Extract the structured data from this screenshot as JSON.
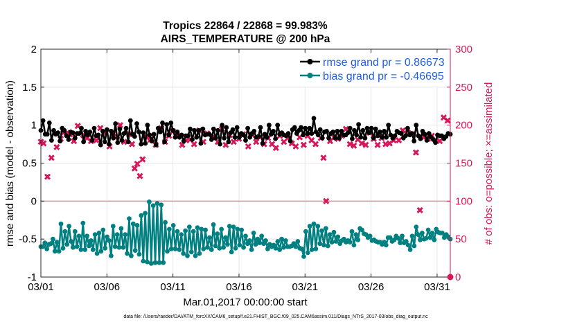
{
  "chart_data": {
    "type": "line",
    "title": "Tropics 22864 / 22868 = 99.983%",
    "subtitle": "AIRS_TEMPERATURE @ 200 hPa",
    "xlabel": "Mar.01,2017 00:00:00 start",
    "ylabel": "rmse and bias (model - observation)",
    "y2label": "# of obs: o=possible; ×=assimilated",
    "footnote": "data file: /Users/raeder/DAI/ATM_forcXX/CAM6_setup/f.e21.FHIST_BGC.f09_025.CAM6assim.011/Diags_NTrS_2017-03/obs_diag_output.nc",
    "x_range": [
      1,
      32
    ],
    "x_ticks": [
      1,
      6,
      11,
      16,
      21,
      26,
      31
    ],
    "x_tick_labels": [
      "03/01",
      "03/06",
      "03/11",
      "03/16",
      "03/21",
      "03/26",
      "03/31"
    ],
    "ylim": [
      -1,
      2
    ],
    "y_ticks": [
      -1,
      -0.5,
      0,
      0.5,
      1,
      1.5,
      2
    ],
    "y_tick_labels": [
      "-1",
      "-0.5",
      "0",
      "0.5",
      "1",
      "1.5",
      "2"
    ],
    "y2lim": [
      0,
      300
    ],
    "y2_ticks": [
      0,
      50,
      100,
      150,
      200,
      250,
      300
    ],
    "y2_tick_labels": [
      "0",
      "50",
      "100",
      "150",
      "200",
      "250",
      "300"
    ],
    "legend_location": "top-right",
    "legend": [
      {
        "label": "rmse grand pr = 0.86673",
        "color": "#000000"
      },
      {
        "label": "bias grand pr = -0.46695",
        "color": "#008080"
      }
    ],
    "colors": {
      "rmse": "#000000",
      "bias": "#008080",
      "obs": "#d6185a",
      "zero_line": "#c49a9a",
      "grid": "#e6e6e6"
    },
    "series": [
      {
        "name": "rmse",
        "values": [
          0.93,
          1.06,
          0.88,
          0.88,
          1.03,
          0.8,
          0.93,
          0.88,
          0.9,
          0.79,
          0.96,
          0.93,
          0.86,
          0.81,
          0.91,
          0.9,
          0.83,
          0.89,
          0.89,
          0.96,
          0.78,
          0.92,
          0.87,
          0.91,
          0.8,
          0.96,
          0.86,
          0.87,
          0.74,
          0.92,
          0.78,
          0.94,
          0.75,
          0.92,
          0.83,
          1.02,
          0.77,
          0.95,
          0.8,
          0.89,
          0.96,
          0.78,
          1.06,
          0.88,
          0.85,
          1.02,
          0.91,
          0.75,
          0.9,
          0.76,
          1.0,
          0.87,
          0.79,
          0.88,
          0.74,
          0.96,
          0.91,
          1.03,
          0.78,
          1.01,
          0.87,
          1.03,
          0.93,
          0.84,
          0.91,
          0.84,
          0.87,
          0.79,
          0.86,
          0.86,
          0.95,
          0.81,
          0.93,
          0.84,
          0.93,
          0.76,
          0.95,
          0.87,
          0.88,
          0.88,
          0.81,
          0.95,
          0.83,
          0.93,
          0.75,
          1.0,
          0.83,
          0.97,
          0.78,
          0.9,
          0.94,
          0.84,
          0.97,
          0.84,
          0.89,
          0.87,
          0.8,
          0.96,
          0.84,
          0.89,
          0.92,
          0.84,
          0.85,
          0.97,
          0.76,
          0.88,
          0.84,
          1.0,
          0.88,
          0.92,
          0.82,
          1.0,
          0.88,
          0.9,
          0.87,
          0.86,
          0.89,
          0.79,
          0.94,
          0.97,
          0.89,
          0.93,
          0.97,
          0.87,
          0.96,
          0.89,
          0.96,
          0.89,
          1.09,
          0.91,
          0.87,
          0.94,
          0.83,
          0.91,
          0.92,
          0.83,
          0.89,
          0.91,
          0.83,
          0.92,
          0.83,
          0.92,
          0.87,
          0.87,
          0.9,
          0.96,
          0.82,
          0.93,
          0.87,
          1.01,
          0.84,
          0.93,
          0.83,
          0.96,
          0.9,
          0.96,
          0.83,
          0.95,
          0.86,
          0.91,
          0.84,
          0.92,
          0.84,
          1.0,
          0.87,
          0.83,
          0.86,
          0.92,
          0.9,
          0.89,
          0.83,
          0.86,
          0.96,
          0.87,
          0.89,
          0.79,
          1.0,
          0.86,
          0.82,
          0.92,
          0.88,
          0.8,
          0.89,
          0.84,
          0.81,
          0.77,
          0.87,
          0.86,
          0.86,
          0.82,
          0.85,
          0.89,
          0.88
        ]
      },
      {
        "name": "bias",
        "values": [
          -0.6,
          -0.6,
          -0.55,
          -0.63,
          -0.57,
          -0.56,
          -0.5,
          -0.66,
          -0.54,
          -0.66,
          -0.3,
          -0.62,
          -0.4,
          -0.57,
          -0.33,
          -0.53,
          -0.61,
          -0.4,
          -0.6,
          -0.46,
          -0.64,
          -0.29,
          -0.64,
          -0.46,
          -0.59,
          -0.52,
          -0.64,
          -0.44,
          -0.69,
          -0.42,
          -0.66,
          -0.38,
          -0.62,
          -0.47,
          -0.52,
          -0.72,
          -0.33,
          -0.6,
          -0.44,
          -0.61,
          -0.36,
          -0.61,
          -0.44,
          -0.69,
          -0.23,
          -0.72,
          -0.3,
          -0.65,
          -0.32,
          -0.7,
          -0.19,
          -0.79,
          -0.16,
          -0.8,
          -0.01,
          -0.82,
          -0.06,
          -0.81,
          -0.03,
          -0.81,
          -0.05,
          -0.81,
          -0.28,
          -0.66,
          -0.37,
          -0.63,
          -0.32,
          -0.63,
          -0.4,
          -0.64,
          -0.44,
          -0.69,
          -0.39,
          -0.72,
          -0.34,
          -0.67,
          -0.4,
          -0.72,
          -0.35,
          -0.69,
          -0.37,
          -0.63,
          -0.38,
          -0.61,
          -0.48,
          -0.64,
          -0.31,
          -0.59,
          -0.43,
          -0.62,
          -0.37,
          -0.61,
          -0.48,
          -0.57,
          -0.33,
          -0.67,
          -0.34,
          -0.62,
          -0.37,
          -0.58,
          -0.38,
          -0.61,
          -0.46,
          -0.56,
          -0.52,
          -0.64,
          -0.42,
          -0.57,
          -0.5,
          -0.55,
          -0.46,
          -0.56,
          -0.52,
          -0.63,
          -0.57,
          -0.6,
          -0.58,
          -0.62,
          -0.53,
          -0.64,
          -0.5,
          -0.61,
          -0.52,
          -0.6,
          -0.6,
          -0.59,
          -0.56,
          -0.6,
          -0.53,
          -0.62,
          -0.63,
          -0.73,
          -0.4,
          -0.68,
          -0.33,
          -0.64,
          -0.3,
          -0.63,
          -0.33,
          -0.56,
          -0.39,
          -0.58,
          -0.36,
          -0.59,
          -0.44,
          -0.54,
          -0.41,
          -0.53,
          -0.47,
          -0.56,
          -0.52,
          -0.5,
          -0.54,
          -0.52,
          -0.54,
          -0.4,
          -0.58,
          -0.44,
          -0.51,
          -0.36,
          -0.38,
          -0.43,
          -0.44,
          -0.48,
          -0.46,
          -0.52,
          -0.51,
          -0.53,
          -0.54,
          -0.54,
          -0.57,
          -0.54,
          -0.58,
          -0.48,
          -0.48,
          -0.53,
          -0.51,
          -0.46,
          -0.49,
          -0.55,
          -0.46,
          -0.55,
          -0.53,
          -0.58,
          -0.64,
          -0.46,
          -0.59,
          -0.34,
          -0.44,
          -0.51,
          -0.42,
          -0.5,
          -0.49,
          -0.38,
          -0.48,
          -0.42,
          -0.51,
          -0.37,
          -0.41,
          -0.42,
          -0.42,
          -0.48,
          -0.44,
          -0.47,
          -0.5
        ]
      }
    ],
    "obs_assimilated": {
      "name": "# of obs assimilated",
      "marker": "x",
      "points": [
        [
          1.0,
          178
        ],
        [
          1.2,
          176
        ],
        [
          1.5,
          132
        ],
        [
          1.8,
          157
        ],
        [
          2.2,
          171
        ],
        [
          2.5,
          182
        ],
        [
          2.7,
          190
        ],
        [
          3.0,
          190
        ],
        [
          3.2,
          188
        ],
        [
          3.5,
          179
        ],
        [
          3.8,
          199
        ],
        [
          4.2,
          187
        ],
        [
          4.5,
          183
        ],
        [
          4.8,
          179
        ],
        [
          5.2,
          180
        ],
        [
          5.5,
          196
        ],
        [
          5.8,
          190
        ],
        [
          6.2,
          172
        ],
        [
          6.5,
          189
        ],
        [
          6.8,
          185
        ],
        [
          7.0,
          200
        ],
        [
          7.3,
          178
        ],
        [
          7.7,
          188
        ],
        [
          7.9,
          175
        ],
        [
          8.1,
          143
        ],
        [
          8.3,
          149
        ],
        [
          8.5,
          133
        ],
        [
          8.7,
          155
        ],
        [
          9.0,
          184
        ],
        [
          9.3,
          181
        ],
        [
          9.7,
          174
        ],
        [
          10.1,
          196
        ],
        [
          10.4,
          178
        ],
        [
          10.7,
          186
        ],
        [
          11.0,
          192
        ],
        [
          11.3,
          187
        ],
        [
          11.7,
          174
        ],
        [
          12.0,
          180
        ],
        [
          12.3,
          181
        ],
        [
          12.6,
          175
        ],
        [
          13.0,
          193
        ],
        [
          13.3,
          178
        ],
        [
          13.6,
          189
        ],
        [
          14.0,
          184
        ],
        [
          14.4,
          178
        ],
        [
          14.7,
          195
        ],
        [
          15.0,
          174
        ],
        [
          15.3,
          187
        ],
        [
          15.6,
          178
        ],
        [
          16.0,
          182
        ],
        [
          16.3,
          188
        ],
        [
          16.7,
          172
        ],
        [
          17.0,
          187
        ],
        [
          17.3,
          178
        ],
        [
          17.6,
          184
        ],
        [
          17.9,
          175
        ],
        [
          18.2,
          183
        ],
        [
          18.5,
          175
        ],
        [
          18.8,
          170
        ],
        [
          19.1,
          186
        ],
        [
          19.4,
          178
        ],
        [
          19.7,
          183
        ],
        [
          20.0,
          176
        ],
        [
          20.3,
          172
        ],
        [
          20.6,
          184
        ],
        [
          20.9,
          174
        ],
        [
          21.2,
          186
        ],
        [
          21.5,
          180
        ],
        [
          21.8,
          175
        ],
        [
          22.2,
          183
        ],
        [
          22.4,
          157
        ],
        [
          22.6,
          100
        ],
        [
          22.9,
          179
        ],
        [
          23.2,
          184
        ],
        [
          23.5,
          182
        ],
        [
          23.8,
          186
        ],
        [
          24.1,
          195
        ],
        [
          24.4,
          175
        ],
        [
          24.7,
          173
        ],
        [
          25.0,
          181
        ],
        [
          25.3,
          176
        ],
        [
          25.6,
          174
        ],
        [
          25.9,
          190
        ],
        [
          26.2,
          182
        ],
        [
          26.5,
          174
        ],
        [
          26.8,
          183
        ],
        [
          27.1,
          175
        ],
        [
          27.4,
          176
        ],
        [
          27.7,
          180
        ],
        [
          28.1,
          180
        ],
        [
          28.4,
          193
        ],
        [
          28.8,
          190
        ],
        [
          29.1,
          188
        ],
        [
          29.4,
          164
        ],
        [
          29.7,
          88
        ],
        [
          30.0,
          184
        ],
        [
          30.3,
          182
        ],
        [
          30.6,
          186
        ],
        [
          30.9,
          180
        ],
        [
          31.2,
          179
        ],
        [
          31.5,
          210
        ],
        [
          31.8,
          206
        ]
      ]
    }
  }
}
